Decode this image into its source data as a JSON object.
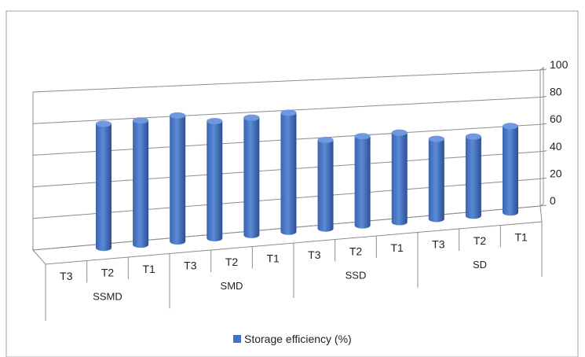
{
  "chart_data": {
    "type": "bar",
    "title": "",
    "xlabel": "",
    "ylabel": "",
    "ylim": [
      0,
      100
    ],
    "yticks": [
      0,
      20,
      40,
      60,
      80,
      100
    ],
    "grid": true,
    "legend_position": "bottom",
    "groups": [
      "SSMD",
      "SMD",
      "SSD",
      "SD"
    ],
    "categories": [
      "T3",
      "T2",
      "T1",
      "T3",
      "T2",
      "T1",
      "T3",
      "T2",
      "T1",
      "T3",
      "T2",
      "T1"
    ],
    "category_groups": [
      "SSMD",
      "SSMD",
      "SSMD",
      "SMD",
      "SMD",
      "SMD",
      "SSD",
      "SSD",
      "SSD",
      "SD",
      "SD",
      "SD"
    ],
    "series": [
      {
        "name": "Storage efficiency (%)",
        "color": "#4472C4",
        "values": [
          80,
          81,
          83,
          78,
          79,
          81,
          61,
          62,
          63,
          57,
          57,
          63
        ]
      }
    ]
  }
}
